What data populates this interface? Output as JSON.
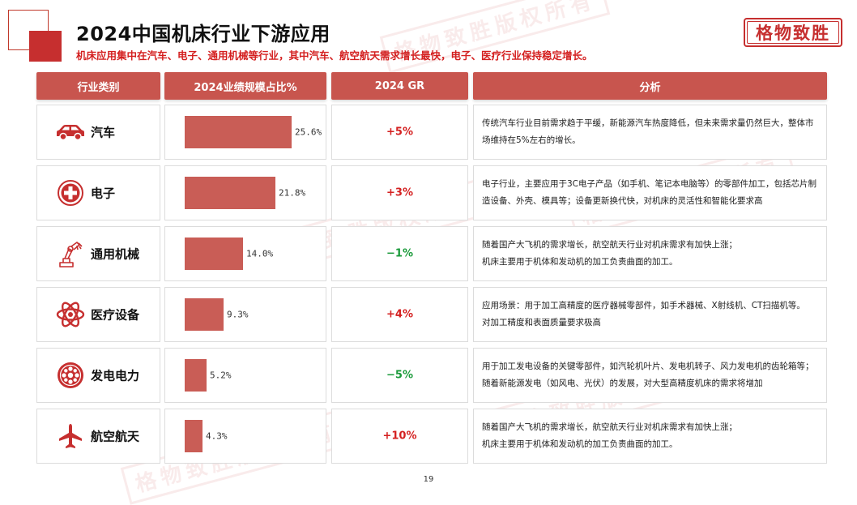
{
  "header": {
    "title": "2024中国机床行业下游应用",
    "subtitle": "机床应用集中在汽车、电子、通用机械等行业，其中汽车、航空航天需求增长最快，电子、医疗行业保持稳定增长。",
    "brand": "格物致胜"
  },
  "watermark": "格物致胜版权所有",
  "table": {
    "columns": [
      "行业类别",
      "2024业绩规模占比%",
      "2024 GR",
      "分析"
    ],
    "rows": [
      {
        "icon": "car-icon",
        "industry": "汽车",
        "share_label": "25.6%",
        "share": 25.6,
        "gr": "+5%",
        "gr_sign": "pos",
        "analysis": [
          "传统汽车行业目前需求趋于平缓，新能源汽车热度降低，但未来需求量仍然巨大，整体市场维持在5%左右的增长。"
        ]
      },
      {
        "icon": "medical-cross-icon",
        "industry": "电子",
        "share_label": "21.8%",
        "share": 21.8,
        "gr": "+3%",
        "gr_sign": "pos",
        "analysis": [
          "电子行业，主要应用于3C电子产品（如手机、笔记本电脑等）的零部件加工，包括芯片制造设备、外壳、模具等；设备更新换代快，对机床的灵活性和智能化要求高"
        ]
      },
      {
        "icon": "robot-arm-icon",
        "industry": "通用机械",
        "share_label": "14.0%",
        "share": 14.0,
        "gr": "−1%",
        "gr_sign": "neg",
        "analysis": [
          "随着国产大飞机的需求增长，航空航天行业对机床需求有加快上涨；",
          "机床主要用于机体和发动机的加工负责曲面的加工。"
        ]
      },
      {
        "icon": "atom-icon",
        "industry": "医疗设备",
        "share_label": "9.3%",
        "share": 9.3,
        "gr": "+4%",
        "gr_sign": "pos",
        "analysis": [
          "应用场景：用于加工高精度的医疗器械零部件，如手术器械、X射线机、CT扫描机等。",
          "对加工精度和表面质量要求极高"
        ]
      },
      {
        "icon": "turbine-icon",
        "industry": "发电电力",
        "share_label": "5.2%",
        "share": 5.2,
        "gr": "−5%",
        "gr_sign": "neg",
        "analysis": [
          "用于加工发电设备的关键零部件，如汽轮机叶片、发电机转子、风力发电机的齿轮箱等；随着新能源发电（如风电、光伏）的发展，对大型高精度机床的需求将增加"
        ]
      },
      {
        "icon": "airplane-icon",
        "industry": "航空航天",
        "share_label": "4.3%",
        "share": 4.3,
        "gr": "+10%",
        "gr_sign": "pos",
        "analysis": [
          "随着国产大飞机的需求增长，航空航天行业对机床需求有加快上涨；",
          "机床主要用于机体和发动机的加工负责曲面的加工。"
        ]
      }
    ]
  },
  "chart_data": {
    "type": "bar",
    "categories": [
      "汽车",
      "电子",
      "通用机械",
      "医疗设备",
      "发电电力",
      "航空航天"
    ],
    "values": [
      25.6,
      21.8,
      14.0,
      9.3,
      5.2,
      4.3
    ],
    "title": "2024业绩规模占比%",
    "xlabel": "",
    "ylabel": ""
  },
  "footer": {
    "page_number": "19"
  },
  "colors": {
    "accent": "#c62f2f",
    "header_bg": "#c8554e",
    "bar": "#c95d56",
    "positive": "#d42020",
    "negative": "#1a9a3a"
  }
}
